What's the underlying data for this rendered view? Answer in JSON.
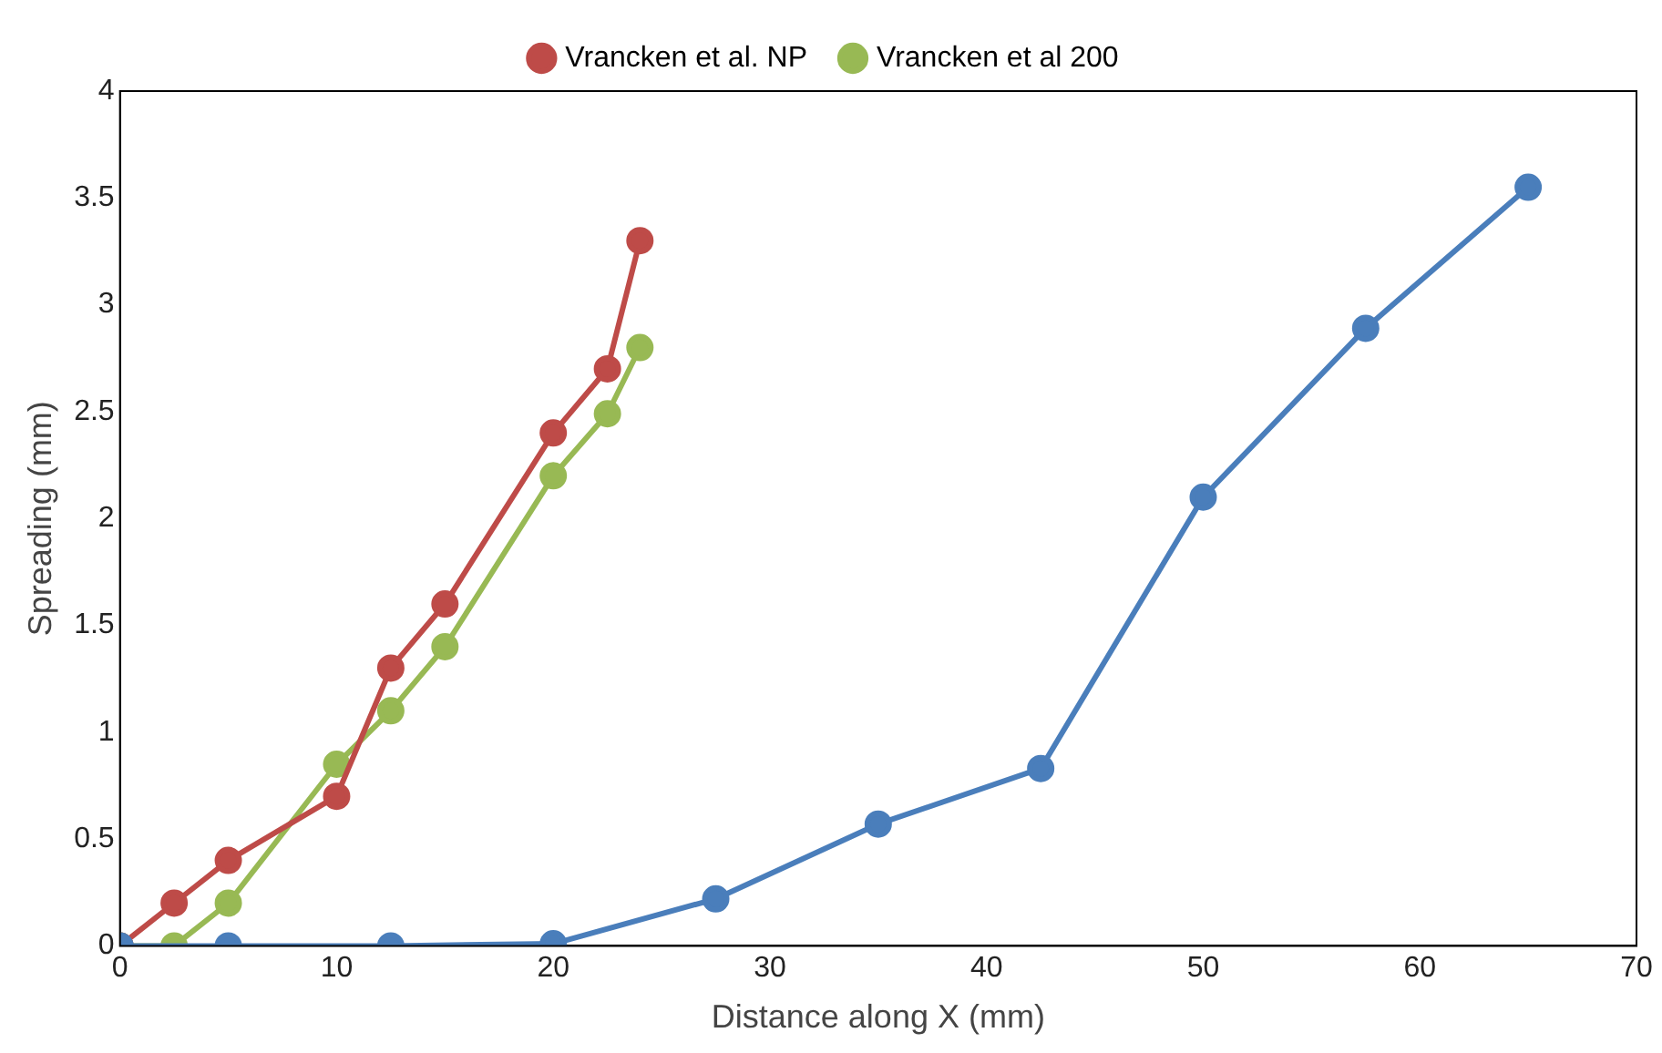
{
  "chart_data": {
    "type": "line",
    "xlabel": "Distance along X (mm)",
    "ylabel": "Spreading (mm)",
    "xlim": [
      0,
      70
    ],
    "xticks": [
      0,
      10,
      20,
      30,
      40,
      50,
      60,
      70
    ],
    "ylim": [
      0,
      4
    ],
    "yticks": [
      0,
      0.5,
      1,
      1.5,
      2,
      2.5,
      3,
      3.5,
      4
    ],
    "grid": false,
    "legend": "top",
    "marker": "circle",
    "line_style": "solid",
    "series": [
      {
        "color": "#4a7ebb",
        "x": [
          0,
          5,
          12.5,
          20,
          27.5,
          35,
          42.5,
          50,
          57.5,
          65
        ],
        "values": [
          0,
          0,
          0,
          0.01,
          0.22,
          0.57,
          0.83,
          2.1,
          2.89,
          3.55
        ]
      },
      {
        "name": "Vrancken et al. NP",
        "color": "#be4b48",
        "x": [
          0,
          2.5,
          5,
          10,
          12.5,
          15,
          20,
          22.5,
          24
        ],
        "values": [
          0,
          0.2,
          0.4,
          0.7,
          1.3,
          1.6,
          2.4,
          2.7,
          3.3
        ]
      },
      {
        "name": "Vrancken et al 200",
        "color": "#98b954",
        "x": [
          0,
          2.5,
          5,
          10,
          12.5,
          15,
          20,
          22.5,
          24
        ],
        "values": [
          0,
          0,
          0.2,
          0.85,
          1.1,
          1.4,
          2.2,
          2.49,
          2.8
        ]
      }
    ]
  }
}
